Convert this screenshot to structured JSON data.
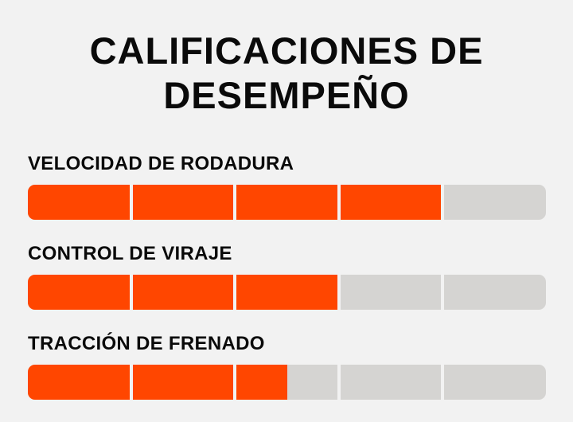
{
  "title": {
    "line1": "CALIFICACIONES DE",
    "line2": "DESEMPEÑO"
  },
  "segments": 5,
  "colors": {
    "fill": "#ff4600",
    "track": "#d5d4d2",
    "background": "#f2f2f2",
    "text": "#0a0a0a"
  },
  "ratings": [
    {
      "label": "VELOCIDAD DE RODADURA",
      "score": 4
    },
    {
      "label": "CONTROL DE VIRAJE",
      "score": 3
    },
    {
      "label": "TRACCIÓN DE FRENADO",
      "score": 2.5
    }
  ]
}
